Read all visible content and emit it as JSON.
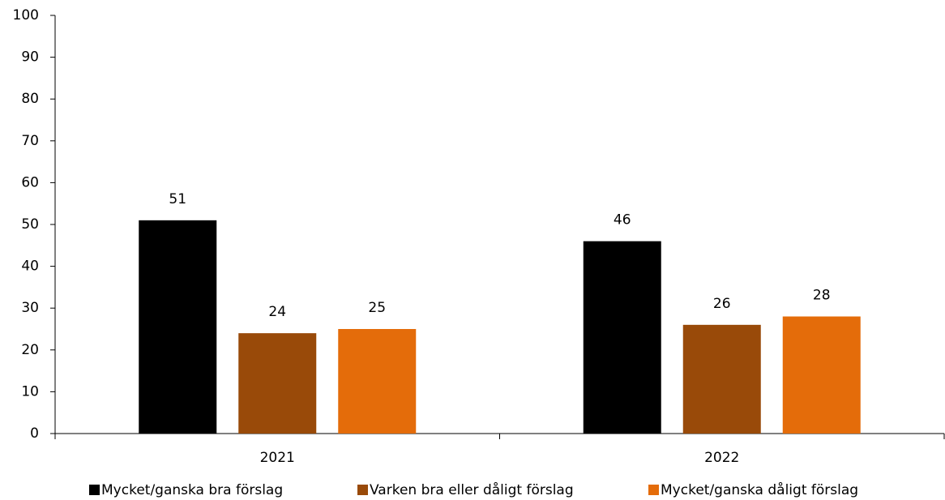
{
  "chart_data": {
    "type": "bar",
    "categories": [
      "2021",
      "2022"
    ],
    "series": [
      {
        "name": "Mycket/ganska bra förslag",
        "color": "#000000",
        "values": [
          51,
          46
        ]
      },
      {
        "name": "Varken bra eller dåligt förslag",
        "color": "#994a09",
        "values": [
          24,
          26
        ]
      },
      {
        "name": "Mycket/ganska dåligt förslag",
        "color": "#e46c0a",
        "values": [
          25,
          28
        ]
      }
    ],
    "ylim": [
      0,
      100
    ],
    "yticks": [
      0,
      10,
      20,
      30,
      40,
      50,
      60,
      70,
      80,
      90,
      100
    ],
    "grid": false,
    "legend": "bottom"
  }
}
